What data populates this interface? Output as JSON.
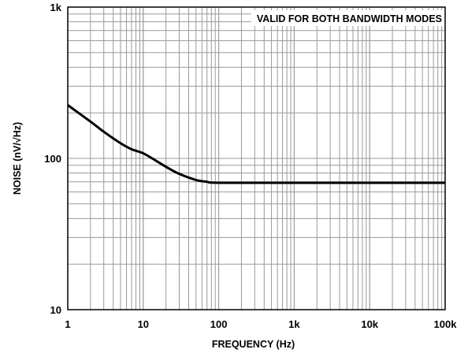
{
  "chart_data": {
    "type": "line",
    "xlabel": "FREQUENCY (Hz)",
    "ylabel": "NOISE (nV/√Hz)",
    "xscale": "log",
    "yscale": "log",
    "xlim": [
      1,
      100000
    ],
    "ylim": [
      10,
      1000
    ],
    "grid": true,
    "annotation": "VALID FOR BOTH BANDWIDTH MODES",
    "xticks": [
      {
        "value": 1,
        "label": "1"
      },
      {
        "value": 10,
        "label": "10"
      },
      {
        "value": 100,
        "label": "100"
      },
      {
        "value": 1000,
        "label": "1k"
      },
      {
        "value": 10000,
        "label": "10k"
      },
      {
        "value": 100000,
        "label": "100k"
      }
    ],
    "yticks": [
      {
        "value": 10,
        "label": "10"
      },
      {
        "value": 100,
        "label": "100"
      },
      {
        "value": 1000,
        "label": "1k"
      }
    ],
    "series": [
      {
        "color": "#000000",
        "x": [
          1,
          2,
          3,
          5,
          7,
          10,
          15,
          20,
          30,
          50,
          70,
          100,
          1000,
          10000,
          100000
        ],
        "y": [
          225,
          175,
          150,
          126,
          115,
          108,
          96,
          88,
          79,
          72,
          70,
          69,
          69,
          69,
          69
        ]
      }
    ]
  }
}
